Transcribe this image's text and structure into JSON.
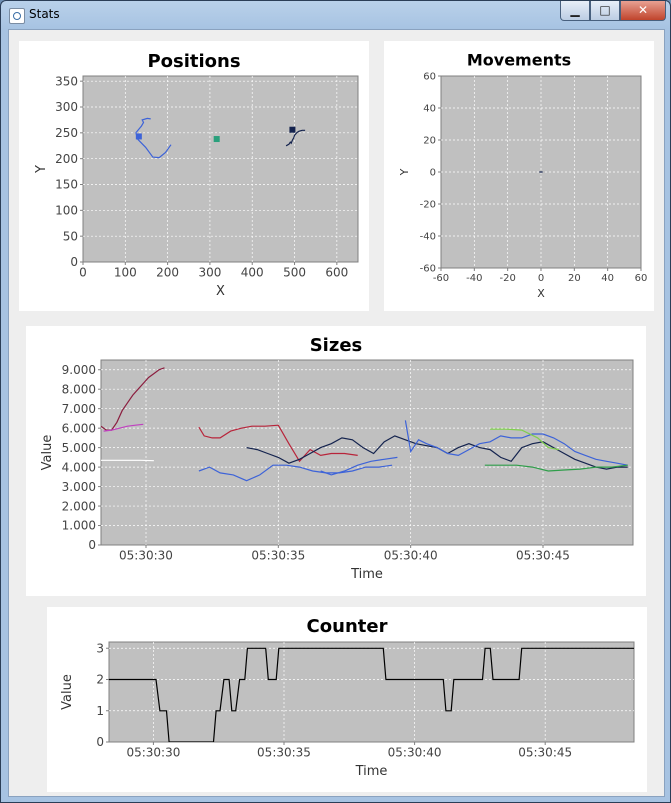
{
  "window": {
    "title": "Stats",
    "buttons": {
      "minimize": "▁",
      "maximize": "□",
      "close": "✕"
    }
  },
  "chart_data": [
    {
      "id": "positions",
      "type": "scatter",
      "title": "Positions",
      "xlabel": "X",
      "ylabel": "Y",
      "xlim": [
        0,
        650
      ],
      "ylim": [
        0,
        360
      ],
      "xticks": [
        0,
        100,
        200,
        300,
        400,
        500,
        600
      ],
      "yticks": [
        0,
        50,
        100,
        150,
        200,
        250,
        300,
        350
      ],
      "grid": true,
      "series": [
        {
          "color": "#3d63d8",
          "x": [
            208,
            195,
            180,
            165,
            148,
            130,
            125,
            138,
            143,
            140,
            152,
            160
          ],
          "y": [
            227,
            212,
            202,
            203,
            222,
            237,
            250,
            263,
            270,
            275,
            278,
            277
          ],
          "marker_at_end": false
        },
        {
          "color": "#3d63d8",
          "x": [
            132
          ],
          "y": [
            243
          ],
          "marker": true
        },
        {
          "color": "#2aa07c",
          "x": [
            314,
            318,
            320,
            322,
            319,
            316
          ],
          "y": [
            238,
            236,
            240,
            236,
            240,
            238
          ],
          "marker": true
        },
        {
          "color": "#14234e",
          "x": [
            480,
            487,
            490,
            492,
            495,
            498,
            500,
            505,
            510,
            518,
            525
          ],
          "y": [
            225,
            228,
            232,
            230,
            236,
            240,
            245,
            250,
            253,
            255,
            255
          ]
        },
        {
          "color": "#14234e",
          "x": [
            495
          ],
          "y": [
            256
          ],
          "marker": true
        }
      ]
    },
    {
      "id": "movements",
      "type": "scatter",
      "title": "Movements",
      "xlabel": "X",
      "ylabel": "Y",
      "xlim": [
        -60,
        60
      ],
      "ylim": [
        -60,
        60
      ],
      "xticks": [
        -60,
        -40,
        -20,
        0,
        20,
        40,
        60
      ],
      "yticks": [
        -60,
        -40,
        -20,
        0,
        20,
        40,
        60
      ],
      "grid": true,
      "series": [
        {
          "color": "#14234e",
          "x": [
            -1,
            1
          ],
          "y": [
            0,
            0
          ]
        }
      ]
    },
    {
      "id": "sizes",
      "type": "line",
      "title": "Sizes",
      "xlabel": "Time",
      "ylabel": "Value",
      "xlim": [
        28.3,
        48.4
      ],
      "ylim": [
        0,
        9500
      ],
      "x_is_time": true,
      "xticks": [
        30,
        35,
        40,
        45
      ],
      "xtick_labels": [
        "05:30:30",
        "05:30:35",
        "05:30:40",
        "05:30:45"
      ],
      "yticks": [
        0,
        1000,
        2000,
        3000,
        4000,
        5000,
        6000,
        7000,
        8000,
        9000
      ],
      "ytick_labels": [
        "0",
        "1.000",
        "2.000",
        "3.000",
        "4.000",
        "5.000",
        "6.000",
        "7.000",
        "8.000",
        "9.000"
      ],
      "grid": true,
      "series": [
        {
          "color": "#8b1e3f",
          "x": [
            28.3,
            28.5,
            28.7,
            28.9,
            29.1,
            29.3,
            29.5,
            29.7,
            29.9,
            30.1,
            30.3,
            30.5,
            30.7
          ],
          "y": [
            6100,
            5900,
            5900,
            6300,
            6900,
            7300,
            7700,
            8000,
            8300,
            8600,
            8800,
            9000,
            9100
          ]
        },
        {
          "color": "#c040c0",
          "x": [
            28.4,
            28.7,
            29.0,
            29.3,
            29.6,
            29.9
          ],
          "y": [
            5850,
            5900,
            6000,
            6100,
            6150,
            6200
          ]
        },
        {
          "color": "#ffffff",
          "x": [
            28.3,
            29.5,
            29.8,
            30.3
          ],
          "y": [
            4350,
            4350,
            4350,
            4330
          ]
        },
        {
          "color": "#b8243a",
          "x": [
            32.0,
            32.2,
            32.5,
            32.8,
            33.2,
            33.6,
            34.0,
            34.5,
            35.0,
            35.4,
            35.8,
            36.2,
            36.6,
            37.0,
            37.5,
            38.0
          ],
          "y": [
            6050,
            5600,
            5500,
            5500,
            5850,
            6000,
            6100,
            6100,
            6150,
            5200,
            4300,
            4900,
            4600,
            4700,
            4700,
            4600
          ]
        },
        {
          "color": "#3d63d8",
          "x": [
            32.0,
            32.4,
            32.8,
            33.3,
            33.8,
            34.3,
            34.8,
            35.3,
            35.8,
            36.3,
            36.8,
            37.3,
            37.8,
            38.3,
            38.8,
            39.3
          ],
          "y": [
            3800,
            4000,
            3700,
            3600,
            3300,
            3600,
            4100,
            4100,
            4000,
            3800,
            3700,
            3700,
            3800,
            4000,
            4000,
            4100
          ]
        },
        {
          "color": "#3d63d8",
          "x": [
            36.6,
            37.0,
            37.5,
            38.0,
            38.5,
            39.0,
            39.5
          ],
          "y": [
            3800,
            3600,
            3800,
            4100,
            4300,
            4400,
            4500
          ]
        },
        {
          "color": "#14234e",
          "x": [
            33.8,
            34.2,
            34.6,
            35.0,
            35.4,
            35.8,
            36.2,
            36.6,
            37.0,
            37.4,
            37.8,
            38.2,
            38.6,
            39.0,
            39.4,
            39.8,
            40.2,
            40.6,
            41.0,
            41.4,
            41.8,
            42.2,
            42.6,
            43.0,
            43.4,
            43.8,
            44.2,
            44.6,
            45.0,
            45.4,
            45.8,
            46.2,
            46.6,
            47.0,
            47.4,
            47.8,
            48.2
          ],
          "y": [
            5000,
            4900,
            4700,
            4500,
            4200,
            4400,
            4700,
            5000,
            5200,
            5500,
            5400,
            5000,
            4700,
            5300,
            5600,
            5400,
            5200,
            5100,
            5000,
            4700,
            5000,
            5200,
            5000,
            4900,
            4500,
            4300,
            5000,
            5200,
            5300,
            5000,
            4700,
            4400,
            4200,
            4000,
            3900,
            4000,
            4000
          ]
        },
        {
          "color": "#3d63d8",
          "x": [
            39.8,
            40.0,
            40.3,
            40.6,
            41.0,
            41.4,
            41.8,
            42.2,
            42.6,
            43.0,
            43.4,
            43.8,
            44.2,
            44.6,
            45.0,
            45.4,
            45.8,
            46.2,
            46.6,
            47.0,
            47.4,
            47.8,
            48.2
          ],
          "y": [
            6400,
            4800,
            5400,
            5200,
            5000,
            4700,
            4600,
            4900,
            5200,
            5300,
            5600,
            5500,
            5500,
            5700,
            5700,
            5500,
            5200,
            4800,
            4600,
            4400,
            4300,
            4200,
            4100
          ]
        },
        {
          "color": "#2f9e4a",
          "x": [
            42.8,
            43.4,
            44.0,
            44.6,
            45.2,
            45.8,
            46.4,
            47.0,
            47.6,
            48.2
          ],
          "y": [
            4100,
            4100,
            4100,
            4000,
            3800,
            3850,
            3900,
            4000,
            4000,
            4100
          ]
        },
        {
          "color": "#7fcf4d",
          "x": [
            43.0,
            43.6,
            44.2,
            44.8,
            45.2,
            45.6
          ],
          "y": [
            5950,
            5950,
            5900,
            5500,
            5000,
            4900
          ]
        }
      ]
    },
    {
      "id": "counter",
      "type": "line",
      "title": "Counter",
      "xlabel": "Time",
      "ylabel": "Value",
      "xlim": [
        28.3,
        48.4
      ],
      "ylim": [
        0,
        3.2
      ],
      "x_is_time": true,
      "xticks": [
        30,
        35,
        40,
        45
      ],
      "xtick_labels": [
        "05:30:30",
        "05:30:35",
        "05:30:40",
        "05:30:45"
      ],
      "yticks": [
        0,
        1,
        2,
        3
      ],
      "ytick_labels": [
        "0",
        "1",
        "2",
        "3"
      ],
      "grid": true,
      "series": [
        {
          "color": "#000000",
          "x": [
            28.3,
            30.1,
            30.25,
            30.5,
            30.6,
            32.3,
            32.4,
            32.55,
            32.7,
            32.9,
            33.0,
            33.15,
            33.3,
            33.5,
            33.6,
            33.75,
            33.85,
            34.3,
            34.4,
            34.7,
            34.8,
            35.0,
            35.1,
            38.8,
            38.9,
            41.1,
            41.2,
            41.4,
            41.5,
            42.6,
            42.7,
            42.9,
            43.0,
            44.0,
            44.1,
            48.4
          ],
          "y": [
            2,
            2,
            1,
            1,
            0,
            0,
            1,
            1,
            2,
            2,
            1,
            1,
            2,
            2,
            3,
            3,
            3,
            3,
            2,
            2,
            3,
            3,
            3,
            3,
            2,
            2,
            1,
            1,
            2,
            2,
            3,
            3,
            2,
            2,
            3,
            3
          ]
        }
      ]
    }
  ]
}
